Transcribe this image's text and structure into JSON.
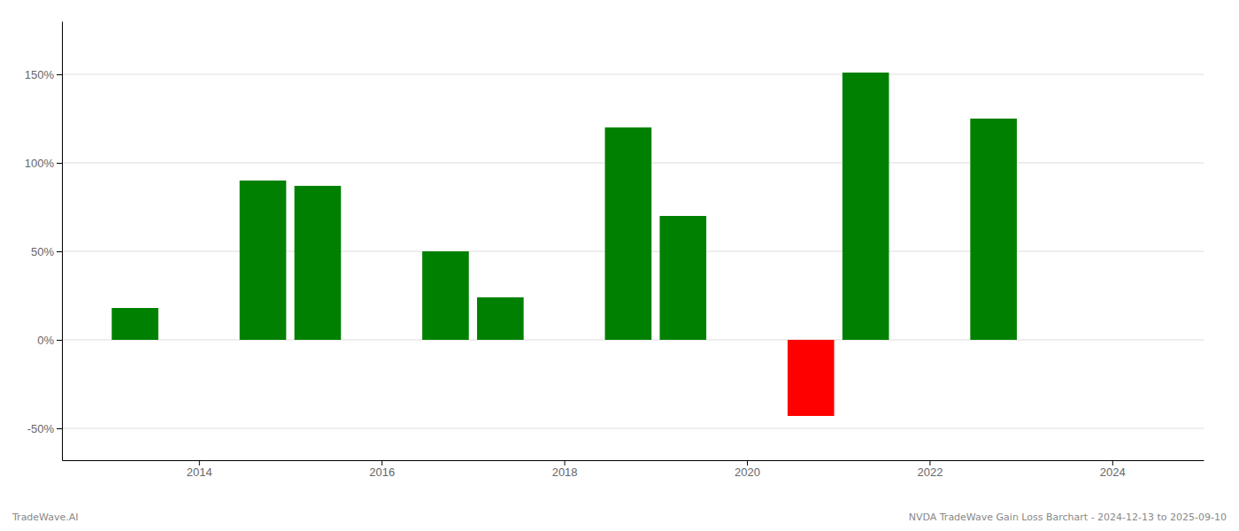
{
  "chart_data": {
    "type": "bar",
    "x": [
      2013.3,
      2014.7,
      2015.3,
      2016.7,
      2017.3,
      2018.7,
      2019.3,
      2020.7,
      2021.3,
      2022.7
    ],
    "values": [
      18,
      90,
      87,
      50,
      24,
      120,
      70,
      -43,
      151,
      125
    ],
    "colors": [
      "#008000",
      "#008000",
      "#008000",
      "#008000",
      "#008000",
      "#008000",
      "#008000",
      "#ff0000",
      "#008000",
      "#008000"
    ],
    "xlim": [
      2012.5,
      2025.0
    ],
    "xticks": [
      2014,
      2016,
      2018,
      2020,
      2022,
      2024
    ],
    "ylim": [
      -68,
      180
    ],
    "yticks": [
      {
        "value": -50,
        "label": "-50%"
      },
      {
        "value": 0,
        "label": "0%"
      },
      {
        "value": 50,
        "label": "50%"
      },
      {
        "value": 100,
        "label": "100%"
      },
      {
        "value": 150,
        "label": "150%"
      }
    ],
    "grid": true,
    "annotations": [
      "TradeWave.AI",
      "NVDA TradeWave Gain Loss Barchart - 2024-12-13 to 2025-09-10"
    ]
  }
}
